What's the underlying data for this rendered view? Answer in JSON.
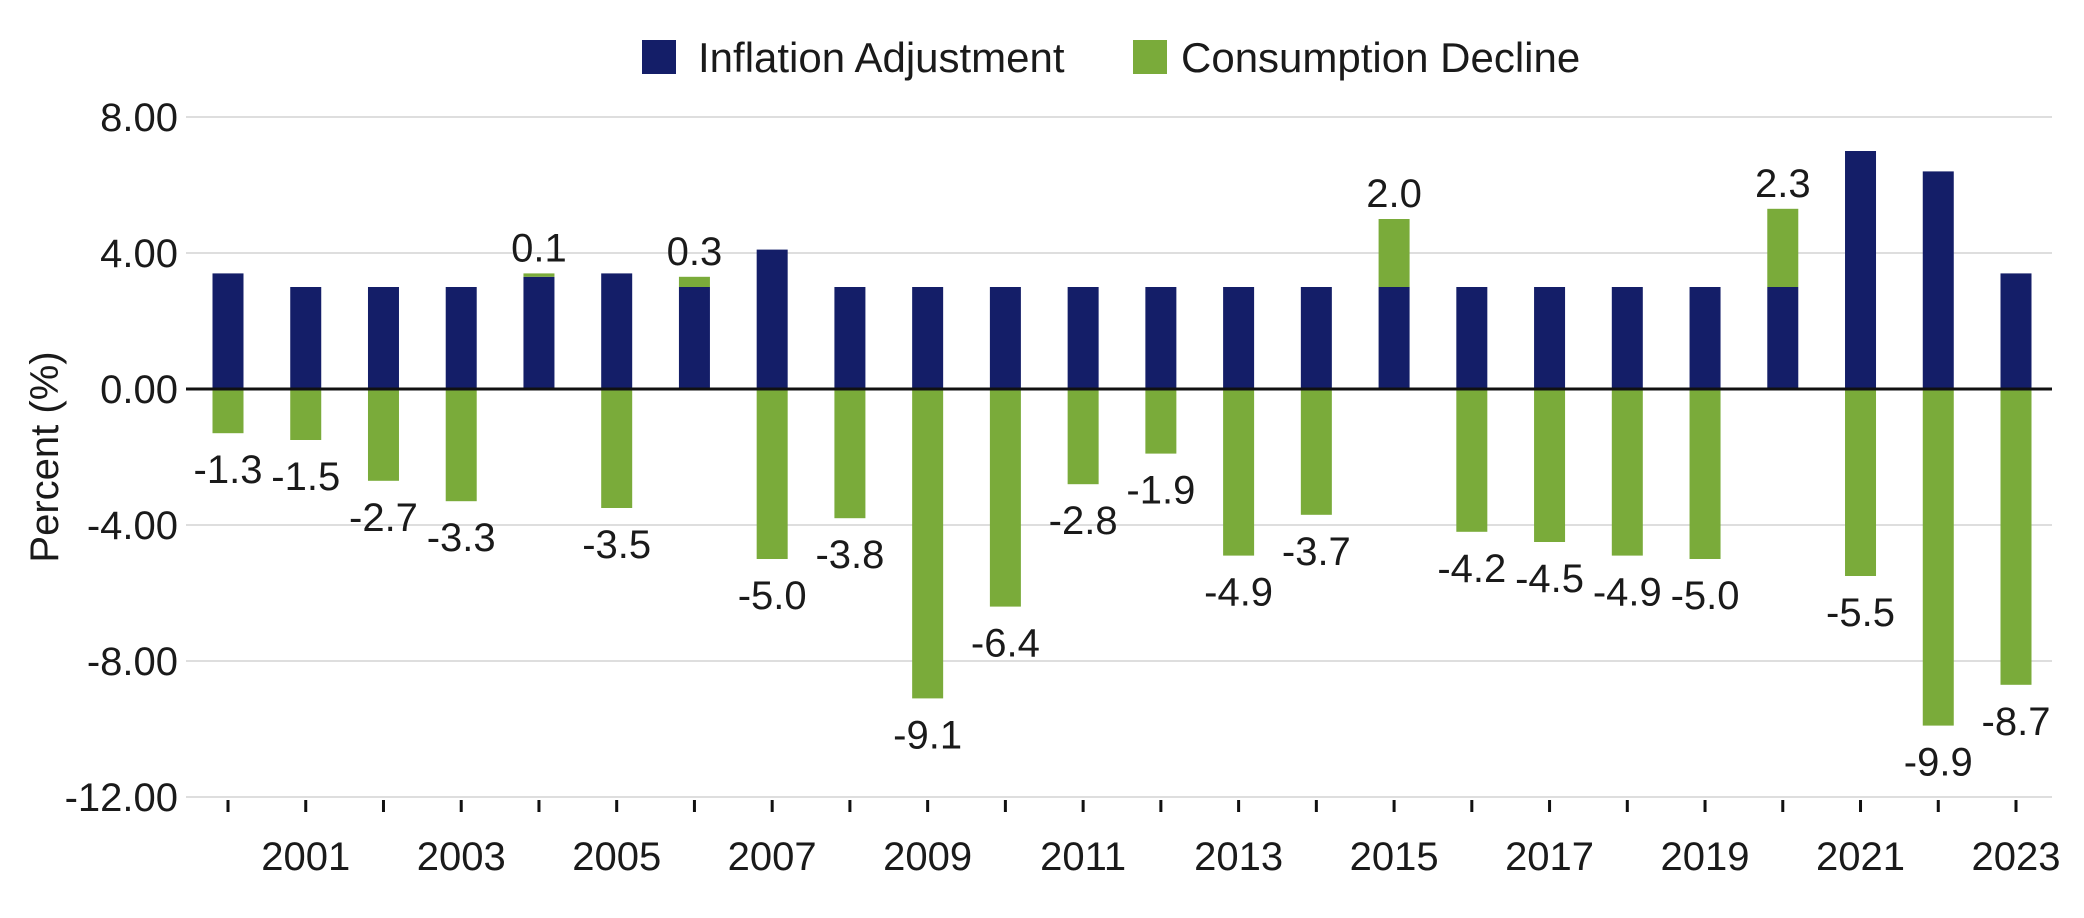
{
  "chart_data": {
    "type": "bar",
    "stacked": true,
    "title": "",
    "xlabel": "",
    "ylabel": "Percent (%)",
    "ylim": [
      -12,
      8
    ],
    "y_ticks": [
      8,
      4,
      0,
      -4,
      -8,
      -12
    ],
    "y_tick_labels": [
      "8.00",
      "4.00",
      "0.00",
      "-4.00",
      "-8.00",
      "-12.00"
    ],
    "grid": true,
    "legend_position": "top-center",
    "categories": [
      "2000",
      "2001",
      "2002",
      "2003",
      "2004",
      "2005",
      "2006",
      "2007",
      "2008",
      "2009",
      "2010",
      "2011",
      "2012",
      "2013",
      "2014",
      "2015",
      "2016",
      "2017",
      "2018",
      "2019",
      "2020",
      "2021",
      "2022",
      "2023"
    ],
    "x_tick_labels": [
      "",
      "2001",
      "",
      "2003",
      "",
      "2005",
      "",
      "2007",
      "",
      "2009",
      "",
      "2011",
      "",
      "2013",
      "",
      "2015",
      "",
      "2017",
      "",
      "2019",
      "",
      "2021",
      "",
      "2023"
    ],
    "series": [
      {
        "name": "Inflation Adjustment",
        "color": "#141e68",
        "values": [
          3.4,
          3.0,
          3.0,
          3.0,
          3.3,
          3.4,
          3.0,
          4.1,
          3.0,
          3.0,
          3.0,
          3.0,
          3.0,
          3.0,
          3.0,
          3.0,
          3.0,
          3.0,
          3.0,
          3.0,
          3.0,
          7.0,
          6.4,
          3.4
        ]
      },
      {
        "name": "Consumption Decline",
        "color": "#7aab3a",
        "values": [
          -1.3,
          -1.5,
          -2.7,
          -3.3,
          0.1,
          -3.5,
          0.3,
          -5.0,
          -3.8,
          -9.1,
          -6.4,
          -2.8,
          -1.9,
          -4.9,
          -3.7,
          2.0,
          -4.2,
          -4.5,
          -4.9,
          -5.0,
          2.3,
          -5.5,
          -9.9,
          -8.7
        ],
        "data_labels": [
          "-1.3",
          "-1.5",
          "-2.7",
          "-3.3",
          "0.1",
          "-3.5",
          "0.3",
          "-5.0",
          "-3.8",
          "-9.1",
          "-6.4",
          "-2.8",
          "-1.9",
          "-4.9",
          "-3.7",
          "2.0",
          "-4.2",
          "-4.5",
          "-4.9",
          "-5.0",
          "2.3",
          "-5.5",
          "-9.9",
          "-8.7"
        ]
      }
    ]
  }
}
